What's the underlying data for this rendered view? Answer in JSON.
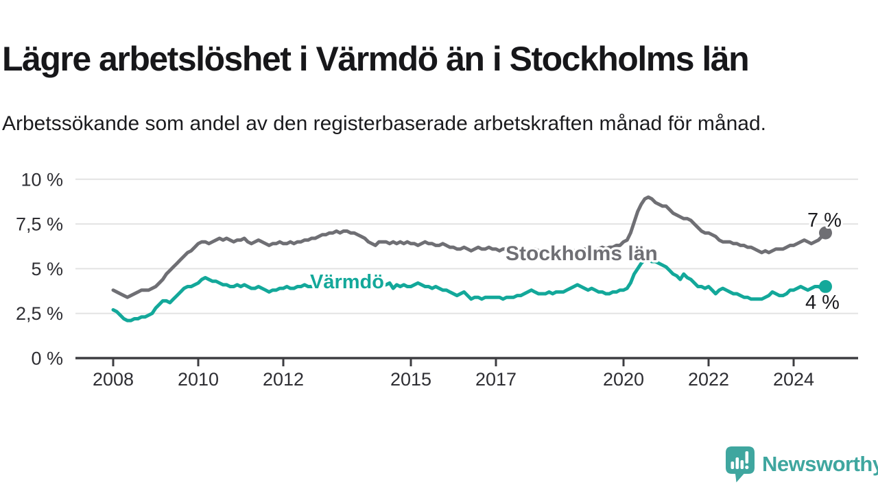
{
  "header": {
    "title": "Lägre arbetslöshet i Värmdö än i Stockholms län",
    "subtitle": "Arbetssökande som andel av den registerbaserade arbetskraften månad för månad."
  },
  "footer": {
    "brand": "Newsworthy",
    "brand_color": "#3FA69F",
    "logo_icon": "newsworthy-speech-bubble-bar-chart-icon"
  },
  "chart_data": {
    "type": "line",
    "unit": "%",
    "frequency": "monthly",
    "x_start": {
      "year": 2008,
      "month": 1
    },
    "x_end": {
      "year": 2024,
      "month": 10
    },
    "ylim": [
      0,
      10
    ],
    "grid": "horizontal",
    "legend_position": "inline-labels",
    "x_ticks": [
      2008,
      2010,
      2012,
      2015,
      2017,
      2020,
      2022,
      2024
    ],
    "y_ticks": [
      {
        "label": "0 %",
        "value": 0
      },
      {
        "label": "2,5 %",
        "value": 2.5
      },
      {
        "label": "5 %",
        "value": 5
      },
      {
        "label": "7,5 %",
        "value": 7.5
      },
      {
        "label": "10 %",
        "value": 10
      }
    ],
    "series": [
      {
        "name": "Stockholms län",
        "color": "#6F6F74",
        "end_label": "7 %",
        "end_value": 7.0,
        "values": [
          3.8,
          3.7,
          3.6,
          3.5,
          3.4,
          3.5,
          3.6,
          3.7,
          3.8,
          3.8,
          3.8,
          3.9,
          4.0,
          4.2,
          4.4,
          4.7,
          4.9,
          5.1,
          5.3,
          5.5,
          5.7,
          5.9,
          6.0,
          6.2,
          6.4,
          6.5,
          6.5,
          6.4,
          6.5,
          6.6,
          6.7,
          6.6,
          6.7,
          6.6,
          6.5,
          6.6,
          6.6,
          6.7,
          6.5,
          6.4,
          6.5,
          6.6,
          6.5,
          6.4,
          6.3,
          6.4,
          6.4,
          6.5,
          6.4,
          6.4,
          6.5,
          6.4,
          6.5,
          6.5,
          6.6,
          6.6,
          6.7,
          6.7,
          6.8,
          6.9,
          6.9,
          7.0,
          7.0,
          7.1,
          7.0,
          7.1,
          7.1,
          7.0,
          7.0,
          6.9,
          6.8,
          6.7,
          6.5,
          6.4,
          6.3,
          6.5,
          6.5,
          6.5,
          6.4,
          6.5,
          6.4,
          6.5,
          6.4,
          6.5,
          6.4,
          6.4,
          6.3,
          6.4,
          6.5,
          6.4,
          6.4,
          6.3,
          6.3,
          6.4,
          6.3,
          6.2,
          6.2,
          6.1,
          6.1,
          6.2,
          6.1,
          6.0,
          6.1,
          6.2,
          6.1,
          6.1,
          6.2,
          6.1,
          6.1,
          6.0,
          6.1,
          6.1,
          6.0,
          6.1,
          6.0,
          6.0,
          6.1,
          6.0,
          6.0,
          6.1,
          6.0,
          6.0,
          6.0,
          5.9,
          6.0,
          6.0,
          6.0,
          5.9,
          6.0,
          6.0,
          6.0,
          6.0,
          6.0,
          6.1,
          6.0,
          6.1,
          6.1,
          6.1,
          6.2,
          6.1,
          6.2,
          6.2,
          6.3,
          6.3,
          6.5,
          6.6,
          7.0,
          7.6,
          8.2,
          8.6,
          8.9,
          9.0,
          8.9,
          8.7,
          8.6,
          8.5,
          8.5,
          8.3,
          8.1,
          8.0,
          7.9,
          7.8,
          7.8,
          7.7,
          7.5,
          7.3,
          7.1,
          7.0,
          7.0,
          6.9,
          6.8,
          6.6,
          6.5,
          6.5,
          6.5,
          6.4,
          6.4,
          6.3,
          6.3,
          6.2,
          6.2,
          6.1,
          6.0,
          5.9,
          6.0,
          5.9,
          6.0,
          6.1,
          6.1,
          6.1,
          6.2,
          6.3,
          6.3,
          6.4,
          6.5,
          6.6,
          6.5,
          6.4,
          6.5,
          6.6,
          6.8,
          7.0
        ]
      },
      {
        "name": "Värmdö",
        "color": "#13A89A",
        "end_label": "4 %",
        "end_value": 4.0,
        "values": [
          2.7,
          2.6,
          2.4,
          2.2,
          2.1,
          2.1,
          2.2,
          2.2,
          2.3,
          2.3,
          2.4,
          2.5,
          2.8,
          3.0,
          3.2,
          3.2,
          3.1,
          3.3,
          3.5,
          3.7,
          3.9,
          4.0,
          4.0,
          4.1,
          4.2,
          4.4,
          4.5,
          4.4,
          4.3,
          4.3,
          4.2,
          4.1,
          4.1,
          4.0,
          4.0,
          4.1,
          4.0,
          4.1,
          4.0,
          3.9,
          3.9,
          4.0,
          3.9,
          3.8,
          3.7,
          3.8,
          3.8,
          3.9,
          3.9,
          4.0,
          3.9,
          3.9,
          4.0,
          4.0,
          4.1,
          4.0,
          4.0,
          4.1,
          4.1,
          4.1,
          4.1,
          4.2,
          4.2,
          4.3,
          4.3,
          4.2,
          4.2,
          4.1,
          4.1,
          4.2,
          4.1,
          4.1,
          4.1,
          4.0,
          4.1,
          4.0,
          4.1,
          4.1,
          4.2,
          3.9,
          4.1,
          4.0,
          4.1,
          4.0,
          4.0,
          4.1,
          4.2,
          4.1,
          4.0,
          4.0,
          3.9,
          4.0,
          3.9,
          3.8,
          3.8,
          3.7,
          3.6,
          3.5,
          3.6,
          3.7,
          3.5,
          3.3,
          3.4,
          3.4,
          3.3,
          3.4,
          3.4,
          3.4,
          3.4,
          3.4,
          3.3,
          3.4,
          3.4,
          3.4,
          3.5,
          3.5,
          3.6,
          3.7,
          3.8,
          3.7,
          3.6,
          3.6,
          3.6,
          3.7,
          3.6,
          3.7,
          3.7,
          3.7,
          3.8,
          3.9,
          4.0,
          4.1,
          4.0,
          3.9,
          3.8,
          3.9,
          3.8,
          3.7,
          3.7,
          3.6,
          3.6,
          3.7,
          3.7,
          3.8,
          3.8,
          3.9,
          4.2,
          4.7,
          5.0,
          5.3,
          5.5,
          5.5,
          5.4,
          5.4,
          5.3,
          5.2,
          5.1,
          4.9,
          4.7,
          4.6,
          4.4,
          4.7,
          4.5,
          4.4,
          4.2,
          4.0,
          4.0,
          3.9,
          4.0,
          3.8,
          3.6,
          3.8,
          3.9,
          3.8,
          3.7,
          3.6,
          3.6,
          3.5,
          3.4,
          3.4,
          3.3,
          3.3,
          3.3,
          3.3,
          3.4,
          3.5,
          3.7,
          3.6,
          3.5,
          3.5,
          3.6,
          3.8,
          3.8,
          3.9,
          4.0,
          3.9,
          3.8,
          3.9,
          4.0,
          4.0,
          3.9,
          4.0
        ]
      }
    ]
  }
}
